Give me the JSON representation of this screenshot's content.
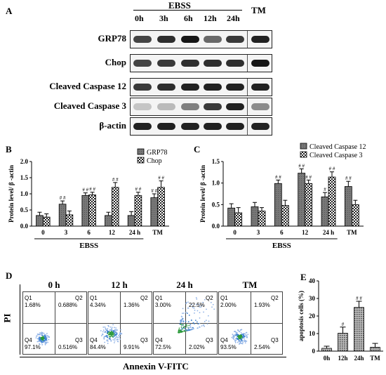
{
  "panel_a": {
    "letter": "A",
    "group_label": "EBSS",
    "tm_label": "TM",
    "lanes": [
      "0h",
      "3h",
      "6h",
      "12h",
      "24h"
    ],
    "rows": [
      {
        "label": "GRP78"
      },
      {
        "label": "Chop"
      },
      {
        "label": "Cleaved Caspase 12"
      },
      {
        "label": "Cleaved Caspase 3"
      },
      {
        "label": "β-actin"
      }
    ]
  },
  "chart_data": [
    {
      "type": "bar",
      "panel": "B",
      "ylabel": "Protein level/ β -actin",
      "categories": [
        "0",
        "3",
        "6",
        "12",
        "24 h",
        "TM"
      ],
      "group_label": "EBSS",
      "ylim": [
        0,
        2.0
      ],
      "yticks": [
        "0.0",
        "0.5",
        "1.0",
        "1.5",
        "2.0"
      ],
      "series": [
        {
          "name": "GRP78",
          "values": [
            0.33,
            0.68,
            0.95,
            0.33,
            0.33,
            0.88
          ],
          "errors": [
            0.1,
            0.1,
            0.08,
            0.1,
            0.12,
            0.12
          ],
          "marks": [
            "",
            "# #",
            "# #",
            "",
            "",
            "# #"
          ]
        },
        {
          "name": "Chop",
          "values": [
            0.28,
            0.35,
            0.97,
            1.2,
            0.95,
            1.2
          ],
          "errors": [
            0.1,
            0.12,
            0.08,
            0.15,
            0.1,
            0.2
          ],
          "marks": [
            "",
            "",
            "# #",
            "# #",
            "# #",
            "# #"
          ]
        }
      ],
      "legend": "top-right"
    },
    {
      "type": "bar",
      "panel": "C",
      "ylabel": "Protein level/ β -actin",
      "categories": [
        "0",
        "3",
        "6",
        "12",
        "24 h",
        "TM"
      ],
      "group_label": "EBSS",
      "ylim": [
        0,
        1.5
      ],
      "yticks": [
        "0.0",
        "0.5",
        "1.0",
        "1.5"
      ],
      "series": [
        {
          "name": "Cleaved Caspase 12",
          "values": [
            0.42,
            0.45,
            0.99,
            1.23,
            0.68,
            0.92
          ],
          "errors": [
            0.1,
            0.1,
            0.08,
            0.1,
            0.1,
            0.12
          ],
          "marks": [
            "",
            "",
            "# #",
            "# #",
            "#",
            "# #"
          ]
        },
        {
          "name": "Cleaved Caspase 3",
          "values": [
            0.31,
            0.35,
            0.48,
            0.99,
            1.14,
            0.5
          ],
          "errors": [
            0.12,
            0.08,
            0.12,
            0.08,
            0.12,
            0.1
          ],
          "marks": [
            "",
            "",
            "",
            "# #",
            "# #",
            ""
          ]
        }
      ],
      "legend": "top-right"
    },
    {
      "type": "bar",
      "panel": "E",
      "ylabel": "apoptosis cells (%)",
      "categories": [
        "0h",
        "12h",
        "24h",
        "TM"
      ],
      "ylim": [
        0,
        40
      ],
      "yticks": [
        "0",
        "10",
        "20",
        "30",
        "40"
      ],
      "series": [
        {
          "values": [
            1.6,
            10.2,
            24.9,
            2.2
          ],
          "errors": [
            1.2,
            3.5,
            3.5,
            2.2
          ],
          "marks": [
            "",
            "#",
            "# #",
            ""
          ]
        }
      ]
    }
  ],
  "panel_d": {
    "letter": "D",
    "y_axis_label": "PI",
    "x_axis_label": "Annexin V-FITC",
    "plots": [
      {
        "title": "0 h",
        "q1": "Q1",
        "q1_val": "1.68%",
        "q2": "Q2",
        "q2_val": "0.688%",
        "q3": "Q3",
        "q3_val": "0.516%",
        "q4": "Q4",
        "q4_val": "97.1%"
      },
      {
        "title": "12 h",
        "q1": "Q1",
        "q1_val": "4.34%",
        "q2": "Q2",
        "q2_val": "1.36%",
        "q3": "Q3",
        "q3_val": "9.91%",
        "q4": "Q4",
        "q4_val": "84.4%"
      },
      {
        "title": "24 h",
        "q1": "Q1",
        "q1_val": "3.00%",
        "q2": "Q2",
        "q2_val": "22.5%",
        "q3": "Q3",
        "q3_val": "2.02%",
        "q4": "Q4",
        "q4_val": "72.5%"
      },
      {
        "title": "TM",
        "q1": "Q1",
        "q1_val": "2.00%",
        "q2": "Q2",
        "q2_val": "1.93%",
        "q3": "Q3",
        "q3_val": "2.54%",
        "q4": "Q4",
        "q4_val": "93.5%"
      }
    ]
  },
  "labels": {
    "b": "B",
    "c": "C",
    "e": "E"
  }
}
